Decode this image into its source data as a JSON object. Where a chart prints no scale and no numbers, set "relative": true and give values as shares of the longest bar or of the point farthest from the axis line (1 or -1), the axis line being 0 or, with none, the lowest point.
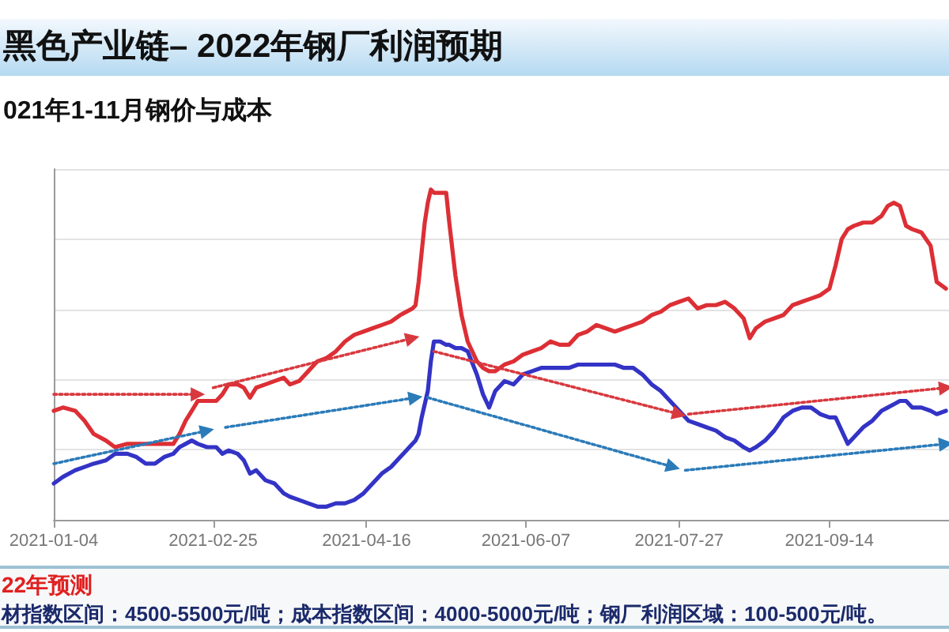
{
  "chart_data": {
    "type": "line",
    "title": "黑色产业链– 2022年钢厂利润预期",
    "subtitle": "021年1-11月钢价与成本",
    "annotations": [
      "22年预测",
      "材指数区间：4500-5500元/吨；成本指数区间：4000-5000元/吨；钢厂利润区域：100-500元/吨。"
    ],
    "relative": true,
    "grid": "y",
    "xlim": [
      "2021-01-04",
      "2021-10-23"
    ],
    "xticks": [
      "2021-01-04",
      "2021-02-25",
      "2021-04-16",
      "2021-06-07",
      "2021-07-27",
      "2021-09-14"
    ],
    "x": [
      "2021-01-04",
      "2021-01-07",
      "2021-01-11",
      "2021-01-14",
      "2021-01-17",
      "2021-01-21",
      "2021-01-24",
      "2021-01-28",
      "2021-01-31",
      "2021-02-03",
      "2021-02-06",
      "2021-02-09",
      "2021-02-12",
      "2021-02-14",
      "2021-02-16",
      "2021-02-18",
      "2021-02-20",
      "2021-02-23",
      "2021-02-26",
      "2021-02-28",
      "2021-03-02",
      "2021-03-05",
      "2021-03-07",
      "2021-03-09",
      "2021-03-11",
      "2021-03-14",
      "2021-03-17",
      "2021-03-20",
      "2021-03-22",
      "2021-03-25",
      "2021-03-28",
      "2021-03-31",
      "2021-04-03",
      "2021-04-06",
      "2021-04-09",
      "2021-04-12",
      "2021-04-15",
      "2021-04-18",
      "2021-04-21",
      "2021-04-24",
      "2021-04-27",
      "2021-04-29",
      "2021-05-01",
      "2021-05-02",
      "2021-05-03",
      "2021-05-04",
      "2021-05-05",
      "2021-05-06",
      "2021-05-07",
      "2021-05-08",
      "2021-05-10",
      "2021-05-12",
      "2021-05-13",
      "2021-05-15",
      "2021-05-17",
      "2021-05-19",
      "2021-05-22",
      "2021-05-24",
      "2021-05-26",
      "2021-05-28",
      "2021-05-31",
      "2021-06-03",
      "2021-06-06",
      "2021-06-09",
      "2021-06-12",
      "2021-06-15",
      "2021-06-18",
      "2021-06-21",
      "2021-06-24",
      "2021-06-27",
      "2021-06-30",
      "2021-07-03",
      "2021-07-06",
      "2021-07-09",
      "2021-07-12",
      "2021-07-15",
      "2021-07-18",
      "2021-07-21",
      "2021-07-24",
      "2021-07-27",
      "2021-07-30",
      "2021-08-02",
      "2021-08-05",
      "2021-08-08",
      "2021-08-11",
      "2021-08-14",
      "2021-08-17",
      "2021-08-19",
      "2021-08-21",
      "2021-08-24",
      "2021-08-27",
      "2021-08-30",
      "2021-09-02",
      "2021-09-05",
      "2021-09-08",
      "2021-09-11",
      "2021-09-14",
      "2021-09-16",
      "2021-09-18",
      "2021-09-20",
      "2021-09-22",
      "2021-09-25",
      "2021-09-28",
      "2021-10-01",
      "2021-10-03",
      "2021-10-05",
      "2021-10-07",
      "2021-10-09",
      "2021-10-11",
      "2021-10-14",
      "2021-10-17",
      "2021-10-19",
      "2021-10-22"
    ],
    "series": [
      {
        "color": "#dc2f35",
        "values": [
          0.33,
          0.34,
          0.33,
          0.3,
          0.26,
          0.24,
          0.22,
          0.23,
          0.23,
          0.23,
          0.23,
          0.23,
          0.23,
          0.26,
          0.3,
          0.33,
          0.36,
          0.36,
          0.36,
          0.38,
          0.41,
          0.41,
          0.4,
          0.37,
          0.4,
          0.41,
          0.42,
          0.43,
          0.41,
          0.42,
          0.45,
          0.48,
          0.49,
          0.51,
          0.54,
          0.56,
          0.57,
          0.58,
          0.59,
          0.6,
          0.62,
          0.63,
          0.64,
          0.65,
          0.72,
          0.81,
          0.9,
          0.96,
          1.0,
          0.99,
          0.99,
          0.99,
          0.9,
          0.74,
          0.62,
          0.54,
          0.48,
          0.46,
          0.45,
          0.45,
          0.47,
          0.48,
          0.5,
          0.51,
          0.52,
          0.54,
          0.53,
          0.53,
          0.56,
          0.57,
          0.59,
          0.58,
          0.57,
          0.58,
          0.59,
          0.6,
          0.62,
          0.63,
          0.65,
          0.66,
          0.67,
          0.64,
          0.65,
          0.65,
          0.66,
          0.64,
          0.61,
          0.55,
          0.58,
          0.6,
          0.61,
          0.62,
          0.65,
          0.66,
          0.67,
          0.68,
          0.7,
          0.77,
          0.85,
          0.88,
          0.89,
          0.9,
          0.9,
          0.92,
          0.95,
          0.96,
          0.95,
          0.89,
          0.88,
          0.87,
          0.83,
          0.72,
          0.7
        ]
      },
      {
        "color": "#3333c6",
        "values": [
          0.11,
          0.13,
          0.15,
          0.16,
          0.17,
          0.18,
          0.2,
          0.2,
          0.19,
          0.17,
          0.17,
          0.19,
          0.2,
          0.22,
          0.23,
          0.24,
          0.23,
          0.22,
          0.22,
          0.2,
          0.21,
          0.2,
          0.18,
          0.14,
          0.15,
          0.12,
          0.11,
          0.08,
          0.07,
          0.06,
          0.05,
          0.04,
          0.04,
          0.05,
          0.05,
          0.06,
          0.08,
          0.11,
          0.14,
          0.16,
          0.19,
          0.21,
          0.23,
          0.24,
          0.26,
          0.31,
          0.35,
          0.39,
          0.48,
          0.54,
          0.54,
          0.53,
          0.53,
          0.52,
          0.52,
          0.51,
          0.44,
          0.38,
          0.34,
          0.39,
          0.42,
          0.41,
          0.44,
          0.45,
          0.46,
          0.46,
          0.46,
          0.46,
          0.47,
          0.47,
          0.47,
          0.47,
          0.47,
          0.46,
          0.46,
          0.44,
          0.41,
          0.39,
          0.36,
          0.33,
          0.3,
          0.29,
          0.28,
          0.27,
          0.25,
          0.24,
          0.22,
          0.21,
          0.22,
          0.24,
          0.27,
          0.31,
          0.33,
          0.34,
          0.34,
          0.32,
          0.31,
          0.31,
          0.27,
          0.23,
          0.25,
          0.28,
          0.3,
          0.33,
          0.34,
          0.35,
          0.36,
          0.36,
          0.34,
          0.34,
          0.33,
          0.32,
          0.33
        ]
      },
      {
        "type": "line",
        "color": "#d8393f",
        "line_style": "dotted",
        "marker": "triangle",
        "x": [
          "2021-01-04",
          "2021-02-20",
          "2021-02-22",
          "2021-02-25",
          "2021-05-01",
          "2021-05-04",
          "2021-05-08",
          "2021-07-27",
          "2021-07-28",
          "2021-07-30",
          "2021-10-22"
        ],
        "values": [
          0.38,
          0.38,
          null,
          0.4,
          0.55,
          null,
          0.51,
          0.32,
          null,
          0.32,
          0.4
        ]
      },
      {
        "type": "line",
        "color": "#2b7bb9",
        "line_style": "dotted",
        "marker": "triangle",
        "x": [
          "2021-01-04",
          "2021-02-23",
          "2021-02-26",
          "2021-03-01",
          "2021-05-02",
          "2021-05-04",
          "2021-05-06",
          "2021-07-25",
          "2021-07-27",
          "2021-07-29",
          "2021-10-22"
        ],
        "values": [
          0.17,
          0.27,
          null,
          0.28,
          0.37,
          null,
          0.37,
          0.16,
          null,
          0.15,
          0.23
        ]
      }
    ]
  }
}
